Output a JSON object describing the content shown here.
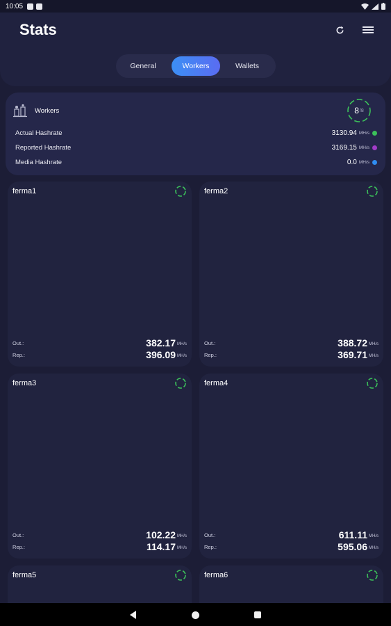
{
  "status_bar": {
    "time": "10:05"
  },
  "header": {
    "title": "Stats"
  },
  "tabs": [
    {
      "label": "General",
      "active": false
    },
    {
      "label": "Workers",
      "active": true
    },
    {
      "label": "Wallets",
      "active": false
    }
  ],
  "summary": {
    "title": "Workers",
    "online": "8",
    "total": "/8",
    "rows": [
      {
        "label": "Actual Hashrate",
        "value": "3130.94",
        "unit": "MH/s",
        "color": "#3cc15a"
      },
      {
        "label": "Reported Hashrate",
        "value": "3169.15",
        "unit": "MH/s",
        "color": "#a23cc8"
      },
      {
        "label": "Media Hashrate",
        "value": "0.0",
        "unit": "MH/s",
        "color": "#2f8cf0"
      }
    ]
  },
  "workers": [
    {
      "name": "ferma1",
      "out_label": "Out.:",
      "out": "382.17",
      "rep_label": "Rep.:",
      "rep": "396.09",
      "unit": "MH/s"
    },
    {
      "name": "ferma2",
      "out_label": "Out.:",
      "out": "388.72",
      "rep_label": "Rep.:",
      "rep": "369.71",
      "unit": "MH/s"
    },
    {
      "name": "ferma3",
      "out_label": "Out.:",
      "out": "102.22",
      "rep_label": "Rep.:",
      "rep": "114.17",
      "unit": "MH/s"
    },
    {
      "name": "ferma4",
      "out_label": "Out.:",
      "out": "611.11",
      "rep_label": "Rep.:",
      "rep": "595.06",
      "unit": "MH/s"
    },
    {
      "name": "ferma5"
    },
    {
      "name": "ferma6"
    }
  ],
  "colors": {
    "accent": "#3c8ff4",
    "online": "#3cc15a",
    "background": "#1c1d36",
    "card": "#21233f"
  },
  "icons": {
    "refresh": "refresh-icon",
    "menu": "menu-icon",
    "workers": "workers-icon",
    "status": "spinner-icon"
  }
}
